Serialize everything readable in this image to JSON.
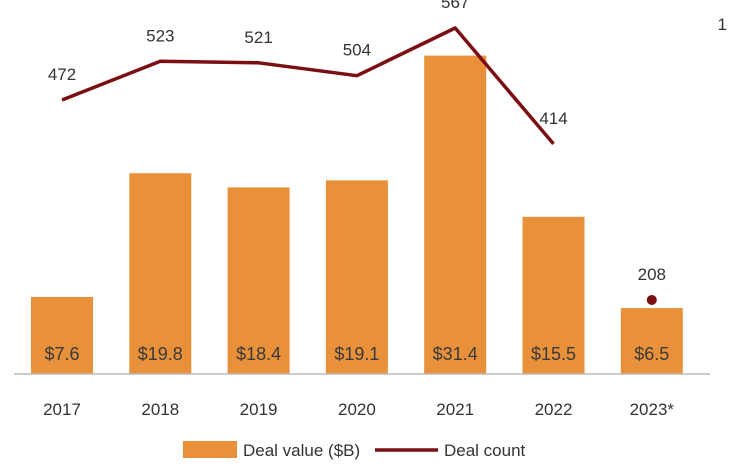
{
  "corner_mark": "1",
  "colors": {
    "bar": "#E8913A",
    "line": "#7A0E12",
    "axis": "#BBBBBB",
    "text": "#333333"
  },
  "legend": {
    "bar_label": "Deal value ($B)",
    "line_label": "Deal count"
  },
  "chart_data": {
    "type": "bar",
    "categories": [
      "2017",
      "2018",
      "2019",
      "2020",
      "2021",
      "2022",
      "2023*"
    ],
    "series": [
      {
        "name": "Deal value ($B)",
        "type": "bar",
        "values": [
          7.6,
          19.8,
          18.4,
          19.1,
          31.4,
          15.5,
          6.5
        ],
        "labels": [
          "$7.6",
          "$19.8",
          "$18.4",
          "$19.1",
          "$31.4",
          "$15.5",
          "$6.5"
        ]
      },
      {
        "name": "Deal count",
        "type": "line",
        "values": [
          472,
          523,
          521,
          504,
          567,
          414,
          208
        ],
        "labels": [
          "472",
          "523",
          "521",
          "504",
          "567",
          "414",
          "208"
        ],
        "last_point_separate": true
      }
    ]
  }
}
